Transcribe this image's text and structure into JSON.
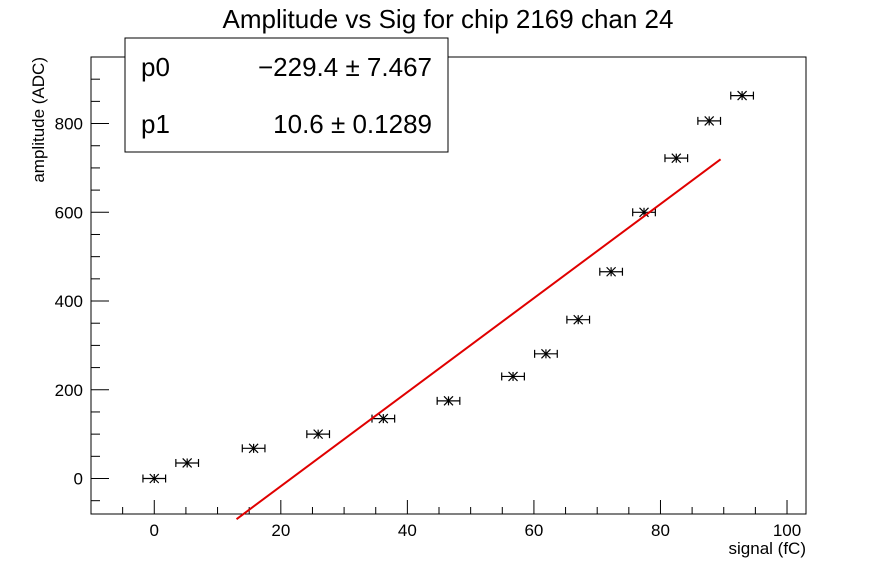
{
  "chart_data": {
    "type": "scatter",
    "title": "Amplitude vs Sig for chip 2169 chan 24",
    "xlabel": "signal (fC)",
    "ylabel": "amplitude (ADC)",
    "xlim": [
      -10,
      103
    ],
    "ylim": [
      -80,
      950
    ],
    "x_ticks": [
      0,
      20,
      40,
      60,
      80,
      100
    ],
    "y_ticks": [
      0,
      200,
      400,
      600,
      800
    ],
    "colors": {
      "points": "#000000",
      "fit": "#e00000"
    },
    "points": [
      {
        "x": 0,
        "y": 0,
        "xerr": 1.0
      },
      {
        "x": 5.2,
        "y": 35,
        "xerr": 1.0
      },
      {
        "x": 15.7,
        "y": 68,
        "xerr": 1.0
      },
      {
        "x": 25.9,
        "y": 100,
        "xerr": 1.0
      },
      {
        "x": 36.2,
        "y": 135,
        "xerr": 1.0
      },
      {
        "x": 46.5,
        "y": 175,
        "xerr": 1.0
      },
      {
        "x": 56.7,
        "y": 230,
        "xerr": 1.0
      },
      {
        "x": 61.9,
        "y": 281,
        "xerr": 1.0
      },
      {
        "x": 67.0,
        "y": 358,
        "xerr": 1.0
      },
      {
        "x": 72.2,
        "y": 466,
        "xerr": 1.0
      },
      {
        "x": 77.4,
        "y": 600,
        "xerr": 1.0
      },
      {
        "x": 82.5,
        "y": 722,
        "xerr": 1.0
      },
      {
        "x": 87.7,
        "y": 806,
        "xerr": 1.0
      },
      {
        "x": 92.9,
        "y": 863,
        "xerr": 1.0
      }
    ],
    "fit": {
      "function": "p0 + p1*x",
      "x_range": [
        13,
        89.5
      ],
      "params": [
        {
          "name": "p0",
          "value": -229.4,
          "error": 7.467,
          "text": "−229.4 ± 7.467"
        },
        {
          "name": "p1",
          "value": 10.6,
          "error": 0.1289,
          "text": "10.6 ± 0.1289"
        }
      ]
    }
  }
}
